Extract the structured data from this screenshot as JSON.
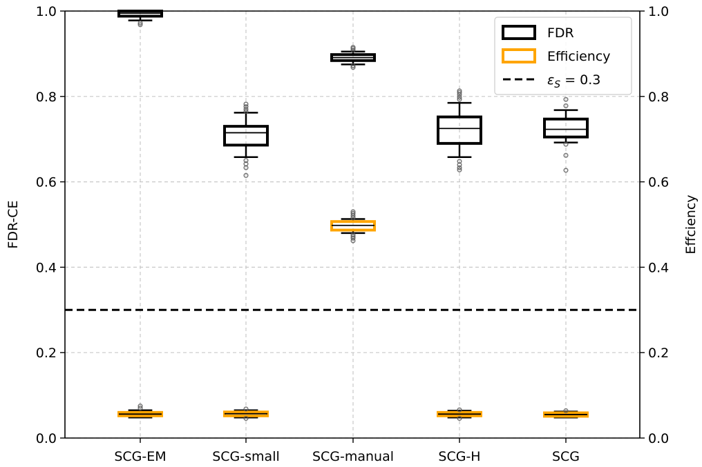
{
  "chart_data": {
    "type": "box",
    "categories": [
      "SCG-EM",
      "SCG-small",
      "SCG-manual",
      "SCG-H",
      "SCG"
    ],
    "ylabel_left": "FDR-CE",
    "ylabel_right": "Effciency",
    "ylim": [
      0,
      1.0
    ],
    "y_ticks": [
      "0.0",
      "0.2",
      "0.4",
      "0.6",
      "0.8",
      "1.0"
    ],
    "grid": true,
    "legend_position": "top-right",
    "series": [
      {
        "name": "FDR",
        "color": "#000000",
        "boxes": [
          {
            "category": "SCG-EM",
            "whisker_low": 0.978,
            "q1": 0.988,
            "median": 0.995,
            "q3": 1.0,
            "whisker_high": 1.0,
            "outliers": [
              0.972,
              0.968
            ]
          },
          {
            "category": "SCG-small",
            "whisker_low": 0.658,
            "q1": 0.686,
            "median": 0.715,
            "q3": 0.73,
            "whisker_high": 0.762,
            "outliers": [
              0.615,
              0.633,
              0.642,
              0.65,
              0.765,
              0.77,
              0.776,
              0.782
            ]
          },
          {
            "category": "SCG-manual",
            "whisker_low": 0.875,
            "q1": 0.884,
            "median": 0.891,
            "q3": 0.898,
            "whisker_high": 0.905,
            "outliers": [
              0.868,
              0.872,
              0.908,
              0.912,
              0.915
            ]
          },
          {
            "category": "SCG-H",
            "whisker_low": 0.658,
            "q1": 0.69,
            "median": 0.725,
            "q3": 0.752,
            "whisker_high": 0.785,
            "outliers": [
              0.628,
              0.633,
              0.64,
              0.648,
              0.793,
              0.798,
              0.804,
              0.809,
              0.813
            ]
          },
          {
            "category": "SCG",
            "whisker_low": 0.692,
            "q1": 0.705,
            "median": 0.723,
            "q3": 0.747,
            "whisker_high": 0.768,
            "outliers": [
              0.627,
              0.662,
              0.688,
              0.778,
              0.793
            ]
          }
        ]
      },
      {
        "name": "Efficiency",
        "color": "#FFA500",
        "boxes": [
          {
            "category": "SCG-EM",
            "whisker_low": 0.048,
            "q1": 0.052,
            "median": 0.056,
            "q3": 0.06,
            "whisker_high": 0.065,
            "outliers": [
              0.07,
              0.075
            ]
          },
          {
            "category": "SCG-small",
            "whisker_low": 0.048,
            "q1": 0.052,
            "median": 0.057,
            "q3": 0.061,
            "whisker_high": 0.065,
            "outliers": [
              0.046,
              0.068
            ]
          },
          {
            "category": "SCG-manual",
            "whisker_low": 0.48,
            "q1": 0.487,
            "median": 0.498,
            "q3": 0.507,
            "whisker_high": 0.513,
            "outliers": [
              0.462,
              0.468,
              0.472,
              0.476,
              0.516,
              0.521,
              0.526,
              0.53
            ]
          },
          {
            "category": "SCG-H",
            "whisker_low": 0.048,
            "q1": 0.052,
            "median": 0.056,
            "q3": 0.06,
            "whisker_high": 0.064,
            "outliers": [
              0.046,
              0.066
            ]
          },
          {
            "category": "SCG",
            "whisker_low": 0.048,
            "q1": 0.051,
            "median": 0.055,
            "q3": 0.059,
            "whisker_high": 0.062,
            "outliers": [
              0.064
            ]
          }
        ]
      }
    ],
    "reference_line": {
      "label": "ε_S = 0.3",
      "value": 0.3,
      "style": "dashed",
      "color": "#000000"
    }
  }
}
